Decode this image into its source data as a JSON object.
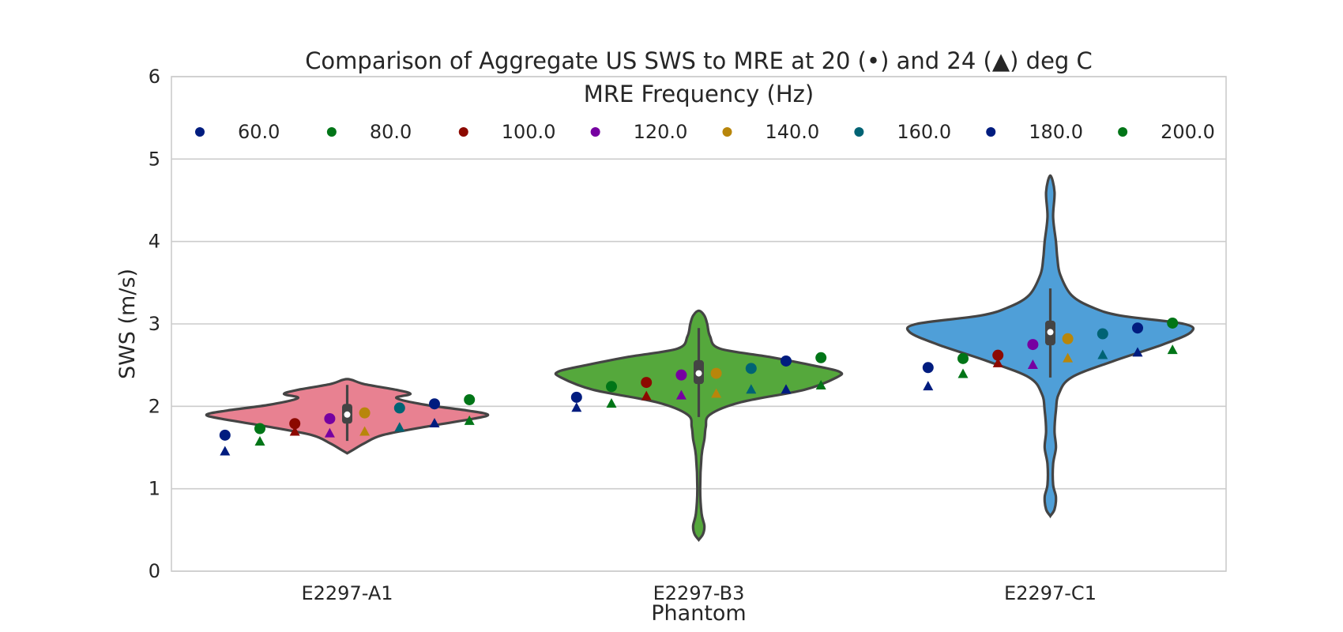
{
  "chart_data": {
    "type": "violin",
    "title": "Comparison of Aggregate US SWS to MRE at 20 (•) and 24 (▲) deg C",
    "xlabel": "Phantom",
    "ylabel": "SWS (m/s)",
    "ylim": [
      0,
      6
    ],
    "yticks": [
      "0",
      "1",
      "2",
      "3",
      "4",
      "5",
      "6"
    ],
    "grid": true,
    "categories": [
      "E2297-A1",
      "E2297-B3",
      "E2297-C1"
    ],
    "violins": [
      {
        "category": "E2297-A1",
        "color": "#e88191",
        "q1": 1.79,
        "median": 1.9,
        "q3": 2.03,
        "whisker_low": 1.58,
        "whisker_high": 2.26,
        "profile": [
          [
            1.43,
            0.0
          ],
          [
            1.47,
            0.04
          ],
          [
            1.55,
            0.12
          ],
          [
            1.65,
            0.25
          ],
          [
            1.75,
            0.55
          ],
          [
            1.85,
            0.9
          ],
          [
            1.9,
            1.0
          ],
          [
            1.95,
            0.85
          ],
          [
            2.02,
            0.55
          ],
          [
            2.1,
            0.35
          ],
          [
            2.15,
            0.45
          ],
          [
            2.2,
            0.35
          ],
          [
            2.27,
            0.12
          ],
          [
            2.33,
            0.0
          ]
        ]
      },
      {
        "category": "E2297-B3",
        "color": "#55a83c",
        "q1": 2.27,
        "median": 2.4,
        "q3": 2.56,
        "whisker_low": 1.87,
        "whisker_high": 2.95,
        "profile": [
          [
            0.38,
            0.0
          ],
          [
            0.45,
            0.03
          ],
          [
            0.55,
            0.04
          ],
          [
            0.7,
            0.02
          ],
          [
            1.0,
            0.01
          ],
          [
            1.4,
            0.02
          ],
          [
            1.6,
            0.04
          ],
          [
            1.75,
            0.05
          ],
          [
            1.9,
            0.08
          ],
          [
            2.05,
            0.3
          ],
          [
            2.2,
            0.75
          ],
          [
            2.35,
            0.98
          ],
          [
            2.42,
            1.0
          ],
          [
            2.5,
            0.8
          ],
          [
            2.6,
            0.5
          ],
          [
            2.7,
            0.15
          ],
          [
            2.85,
            0.08
          ],
          [
            3.0,
            0.06
          ],
          [
            3.1,
            0.04
          ],
          [
            3.16,
            0.0
          ]
        ]
      },
      {
        "category": "E2297-C1",
        "color": "#4f9fd8",
        "q1": 2.74,
        "median": 2.9,
        "q3": 3.04,
        "whisker_low": 2.35,
        "whisker_high": 3.43,
        "profile": [
          [
            0.67,
            0.0
          ],
          [
            0.75,
            0.03
          ],
          [
            0.9,
            0.04
          ],
          [
            1.05,
            0.02
          ],
          [
            1.3,
            0.02
          ],
          [
            1.5,
            0.04
          ],
          [
            1.7,
            0.03
          ],
          [
            1.95,
            0.04
          ],
          [
            2.15,
            0.06
          ],
          [
            2.35,
            0.15
          ],
          [
            2.55,
            0.45
          ],
          [
            2.75,
            0.8
          ],
          [
            2.9,
            1.0
          ],
          [
            3.0,
            0.95
          ],
          [
            3.1,
            0.5
          ],
          [
            3.2,
            0.3
          ],
          [
            3.35,
            0.15
          ],
          [
            3.6,
            0.07
          ],
          [
            3.8,
            0.05
          ],
          [
            4.0,
            0.04
          ],
          [
            4.3,
            0.02
          ],
          [
            4.6,
            0.03
          ],
          [
            4.8,
            0.0
          ]
        ]
      }
    ],
    "legend": {
      "title": "MRE Frequency (Hz)",
      "placement": "top",
      "ncol": 8,
      "entries": [
        "60.0",
        "80.0",
        "100.0",
        "120.0",
        "140.0",
        "160.0",
        "180.0",
        "200.0"
      ]
    },
    "series": [
      {
        "name": "60.0",
        "color": "#001c7f",
        "circle_20C": [
          1.65,
          2.11,
          2.47
        ],
        "triangle_24C": [
          1.45,
          1.98,
          2.24
        ]
      },
      {
        "name": "80.0",
        "color": "#017517",
        "circle_20C": [
          1.73,
          2.24,
          2.58
        ],
        "triangle_24C": [
          1.57,
          2.03,
          2.39
        ]
      },
      {
        "name": "100.0",
        "color": "#8c0900",
        "circle_20C": [
          1.79,
          2.29,
          2.62
        ],
        "triangle_24C": [
          1.69,
          2.12,
          2.52
        ]
      },
      {
        "name": "120.0",
        "color": "#7600a1",
        "circle_20C": [
          1.85,
          2.38,
          2.75
        ],
        "triangle_24C": [
          1.67,
          2.13,
          2.5
        ]
      },
      {
        "name": "140.0",
        "color": "#b8860b",
        "circle_20C": [
          1.92,
          2.4,
          2.82
        ],
        "triangle_24C": [
          1.69,
          2.15,
          2.58
        ]
      },
      {
        "name": "160.0",
        "color": "#006374",
        "circle_20C": [
          1.98,
          2.46,
          2.88
        ],
        "triangle_24C": [
          1.74,
          2.2,
          2.62
        ]
      },
      {
        "name": "180.0",
        "color": "#001c7f",
        "circle_20C": [
          2.03,
          2.55,
          2.95
        ],
        "triangle_24C": [
          1.79,
          2.2,
          2.65
        ]
      },
      {
        "name": "200.0",
        "color": "#017517",
        "circle_20C": [
          2.08,
          2.59,
          3.01
        ],
        "triangle_24C": [
          1.82,
          2.25,
          2.68
        ]
      }
    ]
  }
}
